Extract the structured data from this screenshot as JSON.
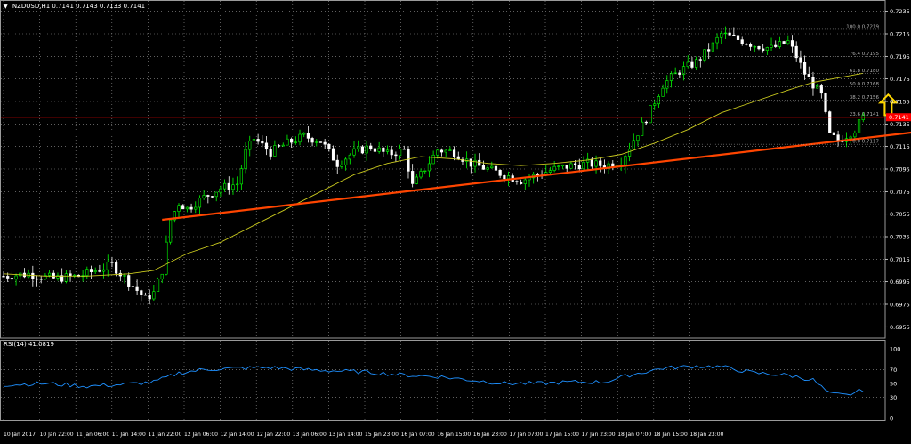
{
  "header": {
    "collapse_glyph": "▼",
    "symbol": "NZDUSD,H1",
    "ohlc": [
      "0.7141",
      "0.7143",
      "0.7133",
      "0.7141"
    ]
  },
  "rsi_header": {
    "label": "RSI(14) 41.0819"
  },
  "colors": {
    "background": "#000000",
    "grid": "#9a9a9a",
    "bull_candle": "#00ff00",
    "bear_candle": "#ffffff",
    "moving_average": "#c9c91e",
    "trendline": "#ff4500",
    "resistance_line": "#ff0000",
    "fibo": "#b0b0b0",
    "rsi_line": "#1e90ff",
    "arrow": "#ffd700",
    "axis_text": "#ffffff",
    "price_tag_bg": "#ff0000"
  },
  "icons": {
    "arrow": "hollow-up-arrow-icon"
  },
  "chart_data": {
    "type": "candlestick",
    "timeframe": "H1",
    "price_axis": {
      "ylim": [
        0.6945,
        0.7245
      ],
      "tick_labels": [
        "0.7235",
        "0.7215",
        "0.7195",
        "0.7175",
        "0.7155",
        "0.7135",
        "0.7115",
        "0.7095",
        "0.7075",
        "0.7055",
        "0.7035",
        "0.7015",
        "0.6995",
        "0.6975",
        "0.6955"
      ],
      "current_price_tag": "0.7141"
    },
    "time_axis": {
      "labels": [
        "10 Jan 2017",
        "10 Jan 22:00",
        "11 Jan 06:00",
        "11 Jan 14:00",
        "11 Jan 22:00",
        "12 Jan 06:00",
        "12 Jan 14:00",
        "12 Jan 22:00",
        "13 Jan 06:00",
        "13 Jan 14:00",
        "15 Jan 23:00",
        "16 Jan 07:00",
        "16 Jan 15:00",
        "16 Jan 23:00",
        "17 Jan 07:00",
        "17 Jan 15:00",
        "17 Jan 23:00",
        "18 Jan 07:00",
        "18 Jan 15:00",
        "18 Jan 23:00"
      ]
    },
    "grid": true,
    "price_path": [
      [
        0,
        0.7
      ],
      [
        6,
        0.7002
      ],
      [
        12,
        0.6998
      ],
      [
        18,
        0.7
      ],
      [
        22,
        0.7005
      ],
      [
        26,
        0.701
      ],
      [
        30,
        0.6995
      ],
      [
        34,
        0.698
      ],
      [
        36,
        0.6985
      ],
      [
        38,
        0.7005
      ],
      [
        40,
        0.705
      ],
      [
        42,
        0.7065
      ],
      [
        44,
        0.706
      ],
      [
        48,
        0.707
      ],
      [
        52,
        0.7078
      ],
      [
        56,
        0.7082
      ],
      [
        58,
        0.711
      ],
      [
        60,
        0.7122
      ],
      [
        64,
        0.711
      ],
      [
        68,
        0.7118
      ],
      [
        72,
        0.7124
      ],
      [
        76,
        0.712
      ],
      [
        80,
        0.71
      ],
      [
        84,
        0.711
      ],
      [
        88,
        0.7115
      ],
      [
        92,
        0.7108
      ],
      [
        96,
        0.7112
      ],
      [
        98,
        0.708
      ],
      [
        100,
        0.709
      ],
      [
        104,
        0.7112
      ],
      [
        108,
        0.711
      ],
      [
        112,
        0.71
      ],
      [
        116,
        0.7095
      ],
      [
        120,
        0.709
      ],
      [
        124,
        0.7085
      ],
      [
        128,
        0.709
      ],
      [
        132,
        0.7095
      ],
      [
        136,
        0.7098
      ],
      [
        140,
        0.71
      ],
      [
        144,
        0.7098
      ],
      [
        148,
        0.7102
      ],
      [
        150,
        0.7115
      ],
      [
        154,
        0.714
      ],
      [
        158,
        0.717
      ],
      [
        162,
        0.7182
      ],
      [
        166,
        0.719
      ],
      [
        170,
        0.7205
      ],
      [
        172,
        0.7215
      ],
      [
        176,
        0.721
      ],
      [
        180,
        0.7205
      ],
      [
        184,
        0.7202
      ],
      [
        188,
        0.7208
      ],
      [
        190,
        0.7195
      ],
      [
        192,
        0.718
      ],
      [
        194,
        0.717
      ],
      [
        196,
        0.716
      ],
      [
        198,
        0.7125
      ],
      [
        200,
        0.712
      ],
      [
        204,
        0.713
      ],
      [
        206,
        0.7141
      ]
    ],
    "moving_average": [
      [
        0,
        0.7002
      ],
      [
        10,
        0.7
      ],
      [
        20,
        0.7
      ],
      [
        30,
        0.7002
      ],
      [
        36,
        0.7005
      ],
      [
        44,
        0.702
      ],
      [
        52,
        0.703
      ],
      [
        60,
        0.7045
      ],
      [
        68,
        0.706
      ],
      [
        76,
        0.7075
      ],
      [
        84,
        0.709
      ],
      [
        92,
        0.71
      ],
      [
        100,
        0.7106
      ],
      [
        108,
        0.7104
      ],
      [
        116,
        0.71
      ],
      [
        124,
        0.7098
      ],
      [
        132,
        0.71
      ],
      [
        140,
        0.7103
      ],
      [
        148,
        0.7108
      ],
      [
        156,
        0.7118
      ],
      [
        164,
        0.713
      ],
      [
        172,
        0.7145
      ],
      [
        180,
        0.7155
      ],
      [
        188,
        0.7165
      ],
      [
        194,
        0.7172
      ],
      [
        200,
        0.7176
      ],
      [
        206,
        0.718
      ]
    ],
    "trendline": {
      "from": [
        38,
        0.705
      ],
      "to": [
        219,
        0.7128
      ]
    },
    "resistance_line": {
      "price": 0.7141
    },
    "fibonacci": {
      "levels": [
        {
          "label": "100.0 0.7219",
          "price": 0.7219
        },
        {
          "label": "76.4 0.7195",
          "price": 0.7195
        },
        {
          "label": "61.8 0.7180",
          "price": 0.718
        },
        {
          "label": "50.0 0.7168",
          "price": 0.7168
        },
        {
          "label": "38.2 0.7156",
          "price": 0.7156
        },
        {
          "label": "23.6 0.7141",
          "price": 0.7141
        },
        {
          "label": "0.0 0.7117",
          "price": 0.7117
        }
      ]
    },
    "rsi": {
      "period": 14,
      "value": 41.0819,
      "ylim": [
        0,
        100
      ],
      "tick_labels": [
        "100",
        "70",
        "50",
        "30",
        "0"
      ],
      "path": [
        [
          0,
          48
        ],
        [
          10,
          50
        ],
        [
          20,
          46
        ],
        [
          30,
          49
        ],
        [
          36,
          52
        ],
        [
          42,
          65
        ],
        [
          48,
          70
        ],
        [
          56,
          72
        ],
        [
          64,
          73
        ],
        [
          72,
          70
        ],
        [
          80,
          68
        ],
        [
          88,
          66
        ],
        [
          96,
          62
        ],
        [
          104,
          60
        ],
        [
          112,
          55
        ],
        [
          120,
          50
        ],
        [
          128,
          50
        ],
        [
          136,
          52
        ],
        [
          144,
          52
        ],
        [
          150,
          62
        ],
        [
          158,
          72
        ],
        [
          166,
          75
        ],
        [
          172,
          74
        ],
        [
          180,
          65
        ],
        [
          188,
          62
        ],
        [
          194,
          55
        ],
        [
          198,
          35
        ],
        [
          202,
          33
        ],
        [
          206,
          41
        ]
      ]
    }
  }
}
